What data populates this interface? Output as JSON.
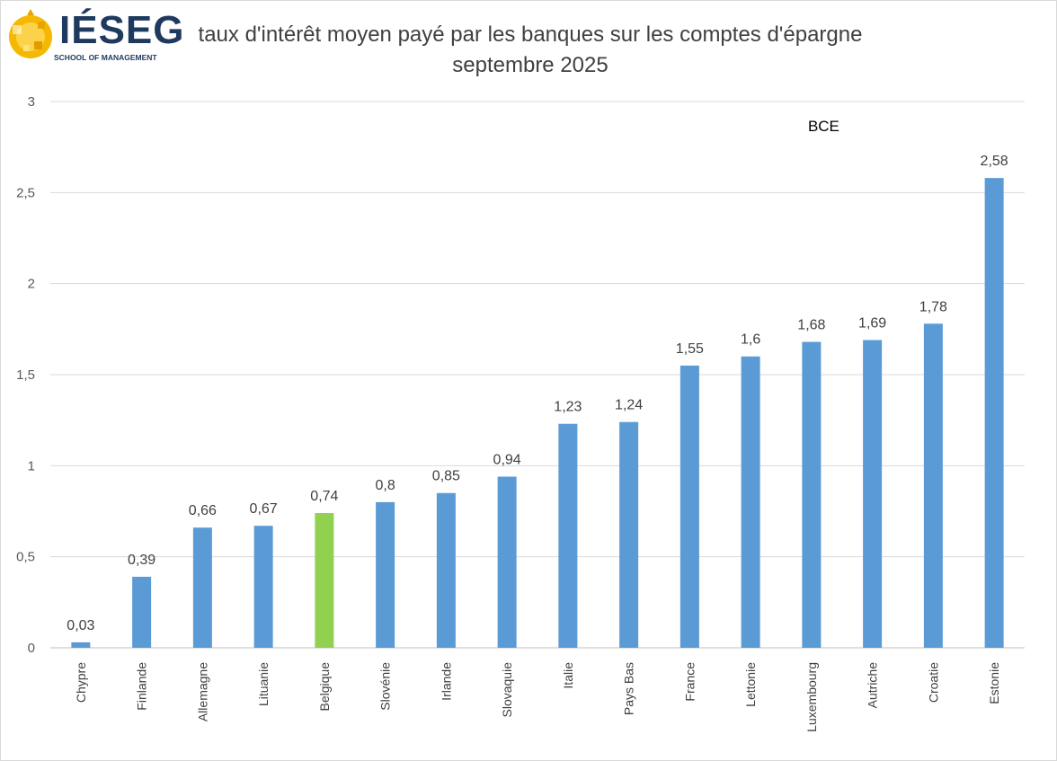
{
  "logo": {
    "word": "IÉSEG",
    "subtitle": "SCHOOL OF MANAGEMENT"
  },
  "chart_data": {
    "type": "bar",
    "title": "taux d'intérêt moyen payé par les banques sur les comptes d'épargne",
    "subtitle": "septembre 2025",
    "annotation": "BCE",
    "categories": [
      "Chypre",
      "Finlande",
      "Allemagne",
      "Lituanie",
      "Belgique",
      "Slovénie",
      "Irlande",
      "Slovaquie",
      "Italie",
      "Pays Bas",
      "France",
      "Lettonie",
      "Luxembourg",
      "Autriche",
      "Croatie",
      "Estonie"
    ],
    "values": [
      0.03,
      0.39,
      0.66,
      0.67,
      0.74,
      0.8,
      0.85,
      0.94,
      1.23,
      1.24,
      1.55,
      1.6,
      1.68,
      1.69,
      1.78,
      2.58
    ],
    "value_labels": [
      "0,03",
      "0,39",
      "0,66",
      "0,67",
      "0,74",
      "0,8",
      "0,85",
      "0,94",
      "1,23",
      "1,24",
      "1,55",
      "1,6",
      "1,68",
      "1,69",
      "1,78",
      "2,58"
    ],
    "highlight_category": "Belgique",
    "bar_color": "#5b9bd5",
    "highlight_color": "#92d050",
    "ylim": [
      0,
      3
    ],
    "yticks": [
      0,
      0.5,
      1,
      1.5,
      2,
      2.5,
      3
    ],
    "ytick_labels": [
      "0",
      "0,5",
      "1",
      "1,5",
      "2",
      "2,5",
      "3"
    ],
    "grid": true,
    "legend": "none"
  }
}
